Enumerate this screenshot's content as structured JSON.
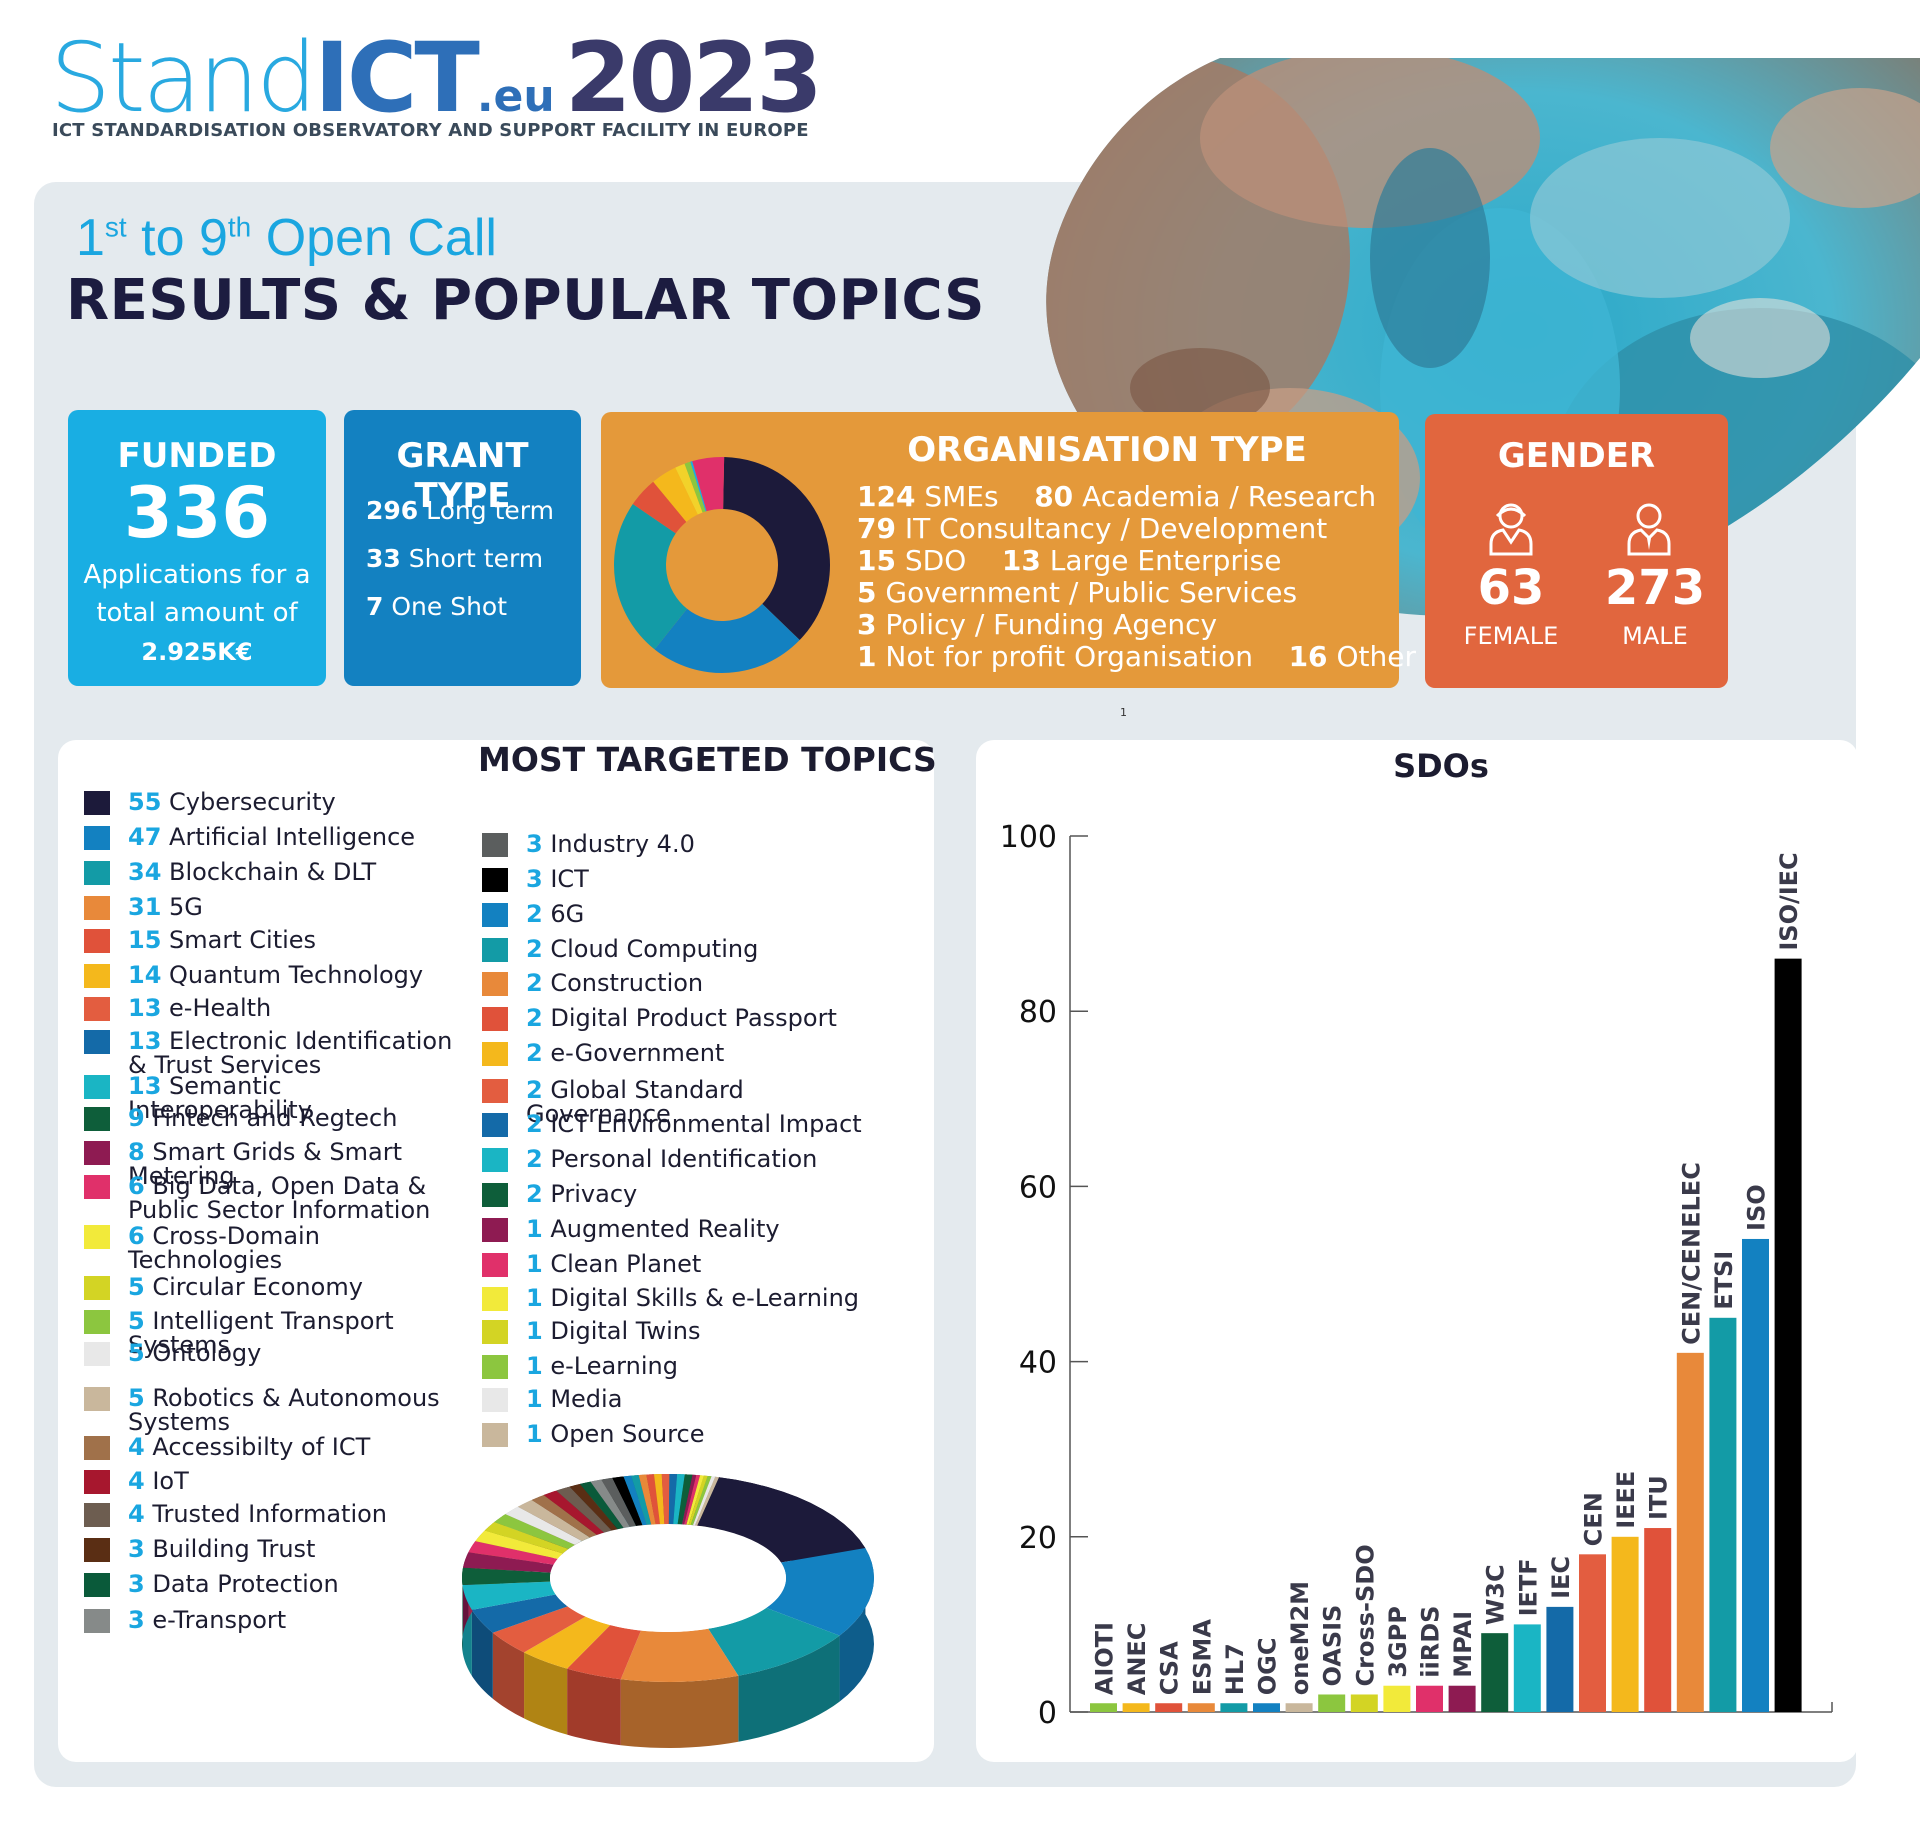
{
  "header": {
    "logo_part1": "Stand",
    "logo_part2": "ICT",
    "logo_domain": ".eu",
    "logo_year": "2023",
    "tagline": "ICT STANDARDISATION OBSERVATORY AND SUPPORT FACILITY IN EUROPE"
  },
  "title": {
    "ordinal1_num": "1",
    "ordinal1_suffix": "st",
    "mid": " to 9",
    "ordinal2_suffix": "th",
    "rest": " Open Call",
    "main": "RESULTS & POPULAR TOPICS"
  },
  "funded": {
    "title": "FUNDED",
    "value": "336",
    "line1": "Applications for a",
    "line2": "total amount of",
    "amount": "2.925K€"
  },
  "grant_type": {
    "title": "GRANT TYPE",
    "items": [
      {
        "value": "296",
        "label": "Long term"
      },
      {
        "value": "33",
        "label": "Short term"
      },
      {
        "value": "7",
        "label": "One Shot"
      }
    ]
  },
  "organisation_type": {
    "title": "ORGANISATION TYPE",
    "lines": [
      [
        {
          "value": "124",
          "label": "SMEs"
        },
        {
          "value": "80",
          "label": "Academia / Research"
        }
      ],
      [
        {
          "value": "79",
          "label": "IT Consultancy / Development"
        }
      ],
      [
        {
          "value": "15",
          "label": "SDO"
        },
        {
          "value": "13",
          "label": "Large Enterprise"
        }
      ],
      [
        {
          "value": "5",
          "label": "Government / Public Services"
        }
      ],
      [
        {
          "value": "3",
          "label": "Policy / Funding Agency"
        }
      ],
      [
        {
          "value": "1",
          "label": "Not for profit Organisation"
        },
        {
          "value": "16",
          "label": "Other"
        }
      ]
    ]
  },
  "gender": {
    "title": "GENDER",
    "female_value": "63",
    "female_label": "FEMALE",
    "male_value": "273",
    "male_label": "MALE"
  },
  "footnote": "1",
  "topics": {
    "title": "MOST TARGETED TOPICS"
  },
  "sdo_title": "SDOs",
  "colors": {
    "navy": "#1c1a3a",
    "blue": "#1381c1",
    "teal": "#139ba6",
    "orange": "#e8893a",
    "red": "#e0523a",
    "yellow": "#f4b81c",
    "cyan": "#19aee3",
    "black": "#000000"
  },
  "chart_data": [
    {
      "type": "pie",
      "title": "ORGANISATION TYPE",
      "categories": [
        "SMEs",
        "IT Consultancy / Development",
        "Academia / Research",
        "SDO",
        "Large Enterprise",
        "Government / Public Services",
        "Policy / Funding Agency",
        "Not for profit Organisation",
        "Other"
      ],
      "values": [
        124,
        79,
        80,
        15,
        13,
        5,
        3,
        1,
        16
      ],
      "colors": [
        "#1c1a3a",
        "#1381c1",
        "#139ba6",
        "#e0523a",
        "#f4b81c",
        "#f2d22a",
        "#8cc63f",
        "#19aee3",
        "#e0306a"
      ]
    },
    {
      "type": "pie",
      "title": "MOST TARGETED TOPICS",
      "items": [
        {
          "value": 55,
          "label": "Cybersecurity",
          "color": "#1c1a3a"
        },
        {
          "value": 47,
          "label": "Artificial Intelligence",
          "color": "#1381c1"
        },
        {
          "value": 34,
          "label": "Blockchain & DLT",
          "color": "#139ba6"
        },
        {
          "value": 31,
          "label": "5G",
          "color": "#e8893a"
        },
        {
          "value": 15,
          "label": "Smart Cities",
          "color": "#e0523a"
        },
        {
          "value": 14,
          "label": "Quantum Technology",
          "color": "#f4b81c"
        },
        {
          "value": 13,
          "label": "e-Health",
          "color": "#e35d40"
        },
        {
          "value": 13,
          "label": "Electronic Identification & Trust Services",
          "color": "#146aa8"
        },
        {
          "value": 13,
          "label": "Semantic Interoperability",
          "color": "#1ab5c4"
        },
        {
          "value": 9,
          "label": "Fintech and Regtech",
          "color": "#0e5e3a"
        },
        {
          "value": 8,
          "label": "Smart Grids & Smart Metering",
          "color": "#8e1b52"
        },
        {
          "value": 6,
          "label": "Big Data, Open Data & Public Sector Information",
          "color": "#e0306a"
        },
        {
          "value": 6,
          "label": "Cross-Domain Technologies",
          "color": "#f2ea3a"
        },
        {
          "value": 5,
          "label": "Circular Economy",
          "color": "#d3d424"
        },
        {
          "value": 5,
          "label": "Intelligent Transport Systems",
          "color": "#8cc63f"
        },
        {
          "value": 5,
          "label": "Ontology",
          "color": "#e8e8e8"
        },
        {
          "value": 5,
          "label": "Robotics & Autonomous Systems",
          "color": "#c9b79c"
        },
        {
          "value": 4,
          "label": "Accessibilty of ICT",
          "color": "#a0714a"
        },
        {
          "value": 4,
          "label": "IoT",
          "color": "#a7172e"
        },
        {
          "value": 4,
          "label": "Trusted Information",
          "color": "#6d5d50"
        },
        {
          "value": 3,
          "label": "Building Trust",
          "color": "#5a2e14"
        },
        {
          "value": 3,
          "label": "Data Protection",
          "color": "#0a5a3a"
        },
        {
          "value": 3,
          "label": "e-Transport",
          "color": "#868a89"
        },
        {
          "value": 3,
          "label": "Industry 4.0",
          "color": "#5b5e5e"
        },
        {
          "value": 3,
          "label": "ICT",
          "color": "#000000"
        },
        {
          "value": 2,
          "label": "6G",
          "color": "#1381c1"
        },
        {
          "value": 2,
          "label": "Cloud Computing",
          "color": "#139ba6"
        },
        {
          "value": 2,
          "label": "Construction",
          "color": "#e8893a"
        },
        {
          "value": 2,
          "label": "Digital Product Passport",
          "color": "#e0523a"
        },
        {
          "value": 2,
          "label": "e-Government",
          "color": "#f4b81c"
        },
        {
          "value": 2,
          "label": "Global Standard Governance",
          "color": "#e35d40"
        },
        {
          "value": 2,
          "label": "ICT Environmental Impact",
          "color": "#146aa8"
        },
        {
          "value": 2,
          "label": "Personal Identification",
          "color": "#1ab5c4"
        },
        {
          "value": 2,
          "label": "Privacy",
          "color": "#0e5e3a"
        },
        {
          "value": 1,
          "label": "Augmented Reality",
          "color": "#8e1b52"
        },
        {
          "value": 1,
          "label": "Clean Planet",
          "color": "#e0306a"
        },
        {
          "value": 1,
          "label": "Digital Skills & e-Learning",
          "color": "#f2ea3a"
        },
        {
          "value": 1,
          "label": "Digital Twins",
          "color": "#d3d424"
        },
        {
          "value": 1,
          "label": "e-Learning",
          "color": "#8cc63f"
        },
        {
          "value": 1,
          "label": "Media",
          "color": "#e8e8e8"
        },
        {
          "value": 1,
          "label": "Open Source",
          "color": "#c9b79c"
        }
      ]
    },
    {
      "type": "bar",
      "title": "SDOs",
      "categories": [
        "AIOTI",
        "ANEC",
        "CSA",
        "ESMA",
        "HL7",
        "OGC",
        "oneM2M",
        "OASIS",
        "Cross-SDO",
        "3GPP",
        "iiRDS",
        "MPAI",
        "W3C",
        "IETF",
        "IEC",
        "CEN",
        "IEEE",
        "ITU",
        "CEN/CENELEC",
        "ETSI",
        "ISO",
        "ISO/IEC"
      ],
      "values": [
        1,
        1,
        1,
        1,
        1,
        1,
        1,
        2,
        2,
        3,
        3,
        3,
        9,
        10,
        12,
        18,
        20,
        21,
        41,
        45,
        54,
        86
      ],
      "colors": [
        "#8cc63f",
        "#f4b81c",
        "#e0523a",
        "#e8893a",
        "#139ba6",
        "#1381c1",
        "#c9b79c",
        "#8cc63f",
        "#d3d424",
        "#f2ea3a",
        "#e0306a",
        "#8e1b52",
        "#0e5e3a",
        "#1ab5c4",
        "#146aa8",
        "#e35d40",
        "#f4b81c",
        "#e0523a",
        "#e8893a",
        "#139ba6",
        "#1381c1",
        "#000000"
      ],
      "ylim": [
        0,
        100
      ],
      "yticks": [
        0,
        20,
        40,
        60,
        80,
        100
      ]
    }
  ]
}
